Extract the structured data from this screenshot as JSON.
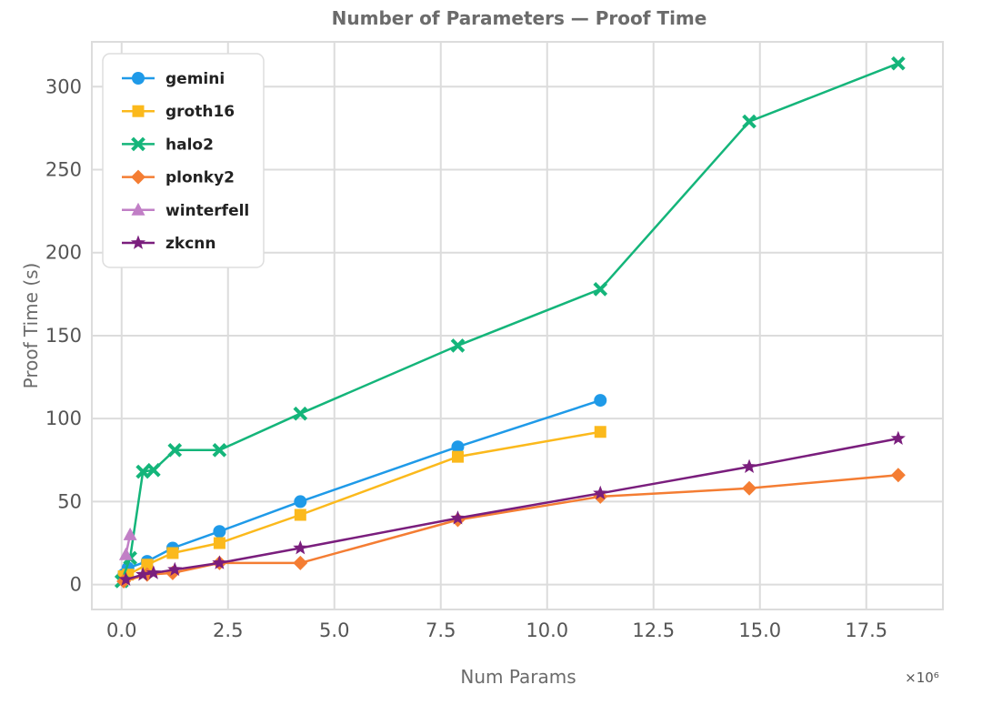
{
  "chart_data": {
    "type": "line",
    "title": "Number of Parameters — Proof Time",
    "xlabel": "Num Params",
    "ylabel": "Proof Time (s)",
    "x_multiplier_label": "×10⁶",
    "xlim": [
      -0.7,
      19.3
    ],
    "ylim": [
      -15,
      327
    ],
    "xticks": [
      0.0,
      2.5,
      5.0,
      7.5,
      10.0,
      12.5,
      15.0,
      17.5
    ],
    "xtick_labels": [
      "0.0",
      "2.5",
      "5.0",
      "7.5",
      "10.0",
      "12.5",
      "15.0",
      "17.5"
    ],
    "yticks": [
      0,
      50,
      100,
      150,
      200,
      250,
      300
    ],
    "ytick_labels": [
      "0",
      "50",
      "100",
      "150",
      "200",
      "250",
      "300"
    ],
    "grid": true,
    "legend_position": "top-left",
    "series": [
      {
        "name": "gemini",
        "color": "#1f9ae8",
        "marker": "circle",
        "x": [
          0.05,
          0.15,
          0.6,
          1.2,
          2.3,
          4.2,
          7.9,
          11.25
        ],
        "y": [
          6,
          10,
          14,
          22,
          32,
          50,
          83,
          111
        ]
      },
      {
        "name": "groth16",
        "color": "#fbb91c",
        "marker": "square",
        "x": [
          0.05,
          0.15,
          0.6,
          1.2,
          2.3,
          4.2,
          7.9,
          11.25
        ],
        "y": [
          5,
          6,
          12,
          19,
          25,
          42,
          77,
          92
        ]
      },
      {
        "name": "halo2",
        "color": "#14b57a",
        "marker": "x",
        "x": [
          0.0,
          0.2,
          0.5,
          0.75,
          1.25,
          2.3,
          4.2,
          7.9,
          11.25,
          14.75,
          18.25
        ],
        "y": [
          2,
          16,
          68,
          69,
          81,
          81,
          103,
          144,
          178,
          279,
          314
        ]
      },
      {
        "name": "plonky2",
        "color": "#f47d33",
        "marker": "diamond",
        "x": [
          0.05,
          0.6,
          1.2,
          2.3,
          4.2,
          7.9,
          11.25,
          14.75,
          18.25
        ],
        "y": [
          2,
          6,
          7,
          13,
          13,
          39,
          53,
          58,
          66
        ]
      },
      {
        "name": "winterfell",
        "color": "#c17fc6",
        "marker": "triangle",
        "x": [
          0.1,
          0.2
        ],
        "y": [
          18,
          30
        ]
      },
      {
        "name": "zkcnn",
        "color": "#7a1e7d",
        "marker": "star",
        "x": [
          0.1,
          0.5,
          0.75,
          1.25,
          2.3,
          4.2,
          7.9,
          11.25,
          14.75,
          18.25
        ],
        "y": [
          3,
          6,
          7,
          9,
          13,
          22,
          40,
          55,
          71,
          88
        ]
      }
    ]
  }
}
